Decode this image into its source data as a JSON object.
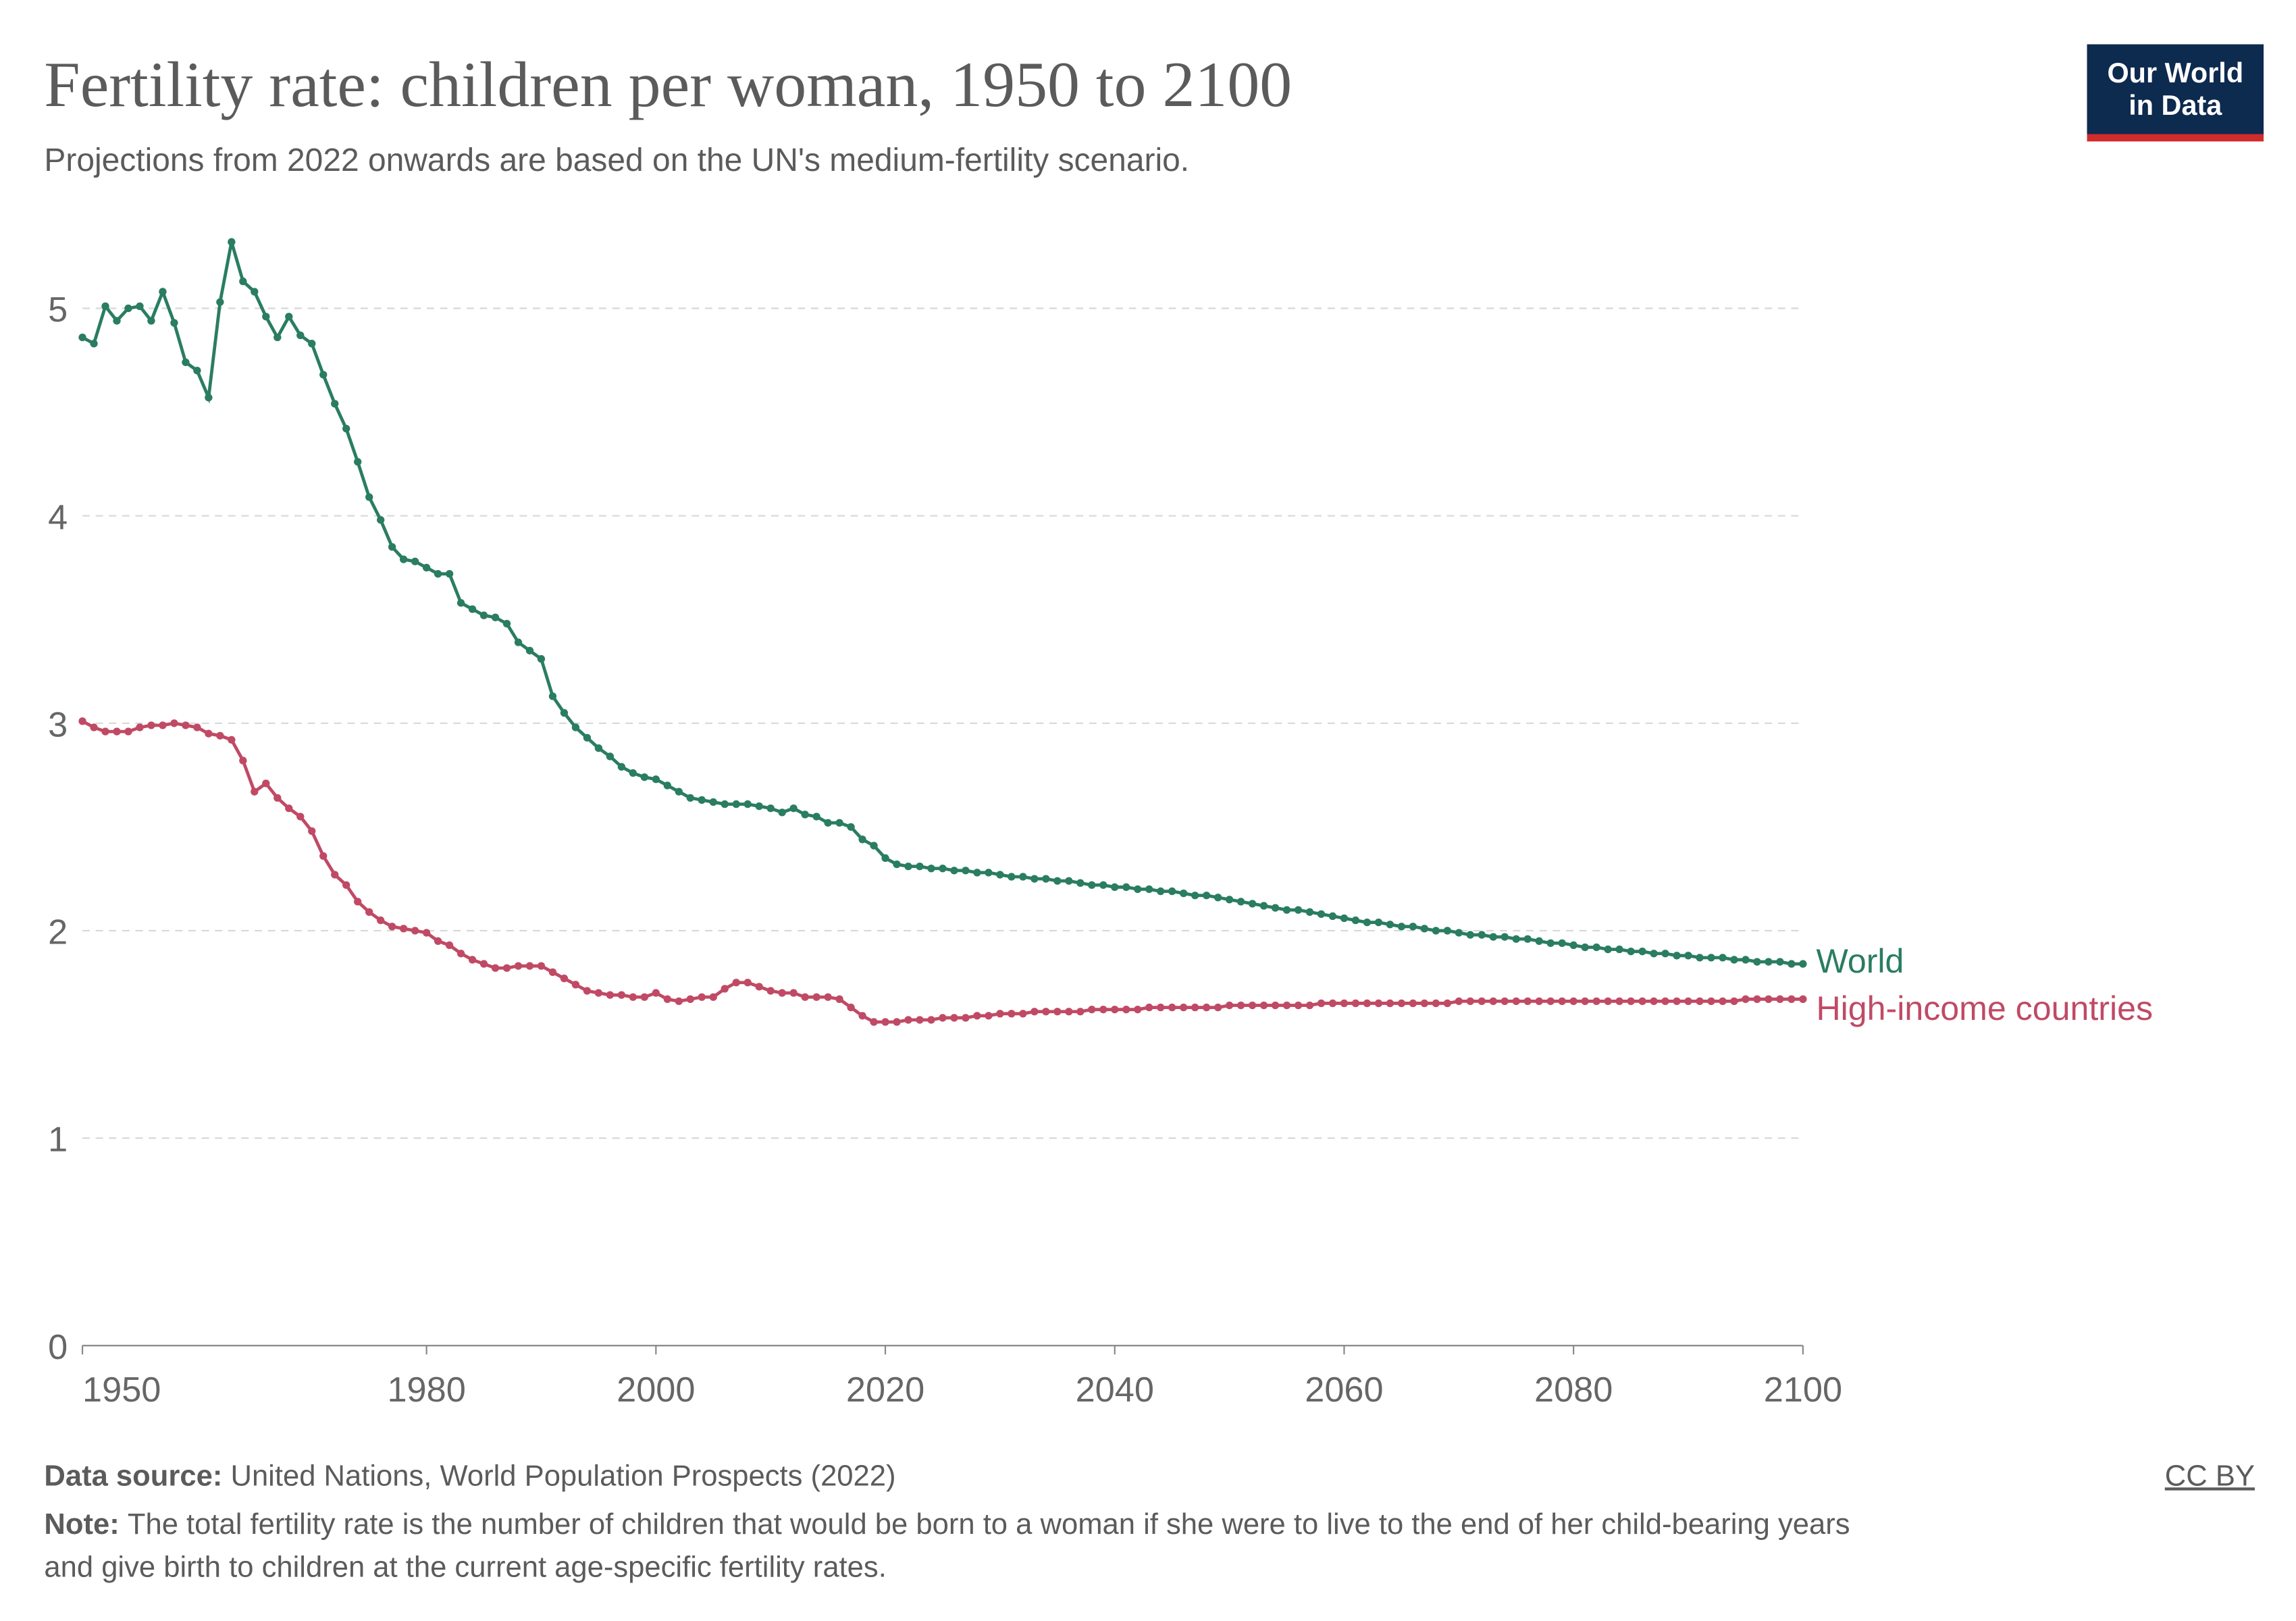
{
  "chart_data": {
    "type": "line",
    "title": "Fertility rate: children per woman, 1950 to 2100",
    "subtitle": "Projections from 2022 onwards are based on the UN's medium-fertility scenario.",
    "logo": [
      "Our World",
      "in Data"
    ],
    "source_label": "Data source:",
    "source": "United Nations, World Population Prospects (2022)",
    "license": "CC BY",
    "note_label": "Note:",
    "note_lines": [
      "The total fertility rate is the number of children that would be born to a woman if she were to live to the end of her child-bearing years",
      "and give birth to children at the current age-specific fertility rates."
    ],
    "x": [
      1950,
      1951,
      1952,
      1953,
      1954,
      1955,
      1956,
      1957,
      1958,
      1959,
      1960,
      1961,
      1962,
      1963,
      1964,
      1965,
      1966,
      1967,
      1968,
      1969,
      1970,
      1971,
      1972,
      1973,
      1974,
      1975,
      1976,
      1977,
      1978,
      1979,
      1980,
      1981,
      1982,
      1983,
      1984,
      1985,
      1986,
      1987,
      1988,
      1989,
      1990,
      1991,
      1992,
      1993,
      1994,
      1995,
      1996,
      1997,
      1998,
      1999,
      2000,
      2001,
      2002,
      2003,
      2004,
      2005,
      2006,
      2007,
      2008,
      2009,
      2010,
      2011,
      2012,
      2013,
      2014,
      2015,
      2016,
      2017,
      2018,
      2019,
      2020,
      2021,
      2022,
      2023,
      2024,
      2025,
      2026,
      2027,
      2028,
      2029,
      2030,
      2031,
      2032,
      2033,
      2034,
      2035,
      2036,
      2037,
      2038,
      2039,
      2040,
      2041,
      2042,
      2043,
      2044,
      2045,
      2046,
      2047,
      2048,
      2049,
      2050,
      2051,
      2052,
      2053,
      2054,
      2055,
      2056,
      2057,
      2058,
      2059,
      2060,
      2061,
      2062,
      2063,
      2064,
      2065,
      2066,
      2067,
      2068,
      2069,
      2070,
      2071,
      2072,
      2073,
      2074,
      2075,
      2076,
      2077,
      2078,
      2079,
      2080,
      2081,
      2082,
      2083,
      2084,
      2085,
      2086,
      2087,
      2088,
      2089,
      2090,
      2091,
      2092,
      2093,
      2094,
      2095,
      2096,
      2097,
      2098,
      2099,
      2100
    ],
    "series": [
      {
        "name": "World",
        "color": "#2a7d60",
        "values": [
          4.86,
          4.83,
          5.01,
          4.94,
          5.0,
          5.01,
          4.94,
          5.08,
          4.93,
          4.74,
          4.7,
          4.57,
          5.03,
          5.32,
          5.13,
          5.08,
          4.96,
          4.86,
          4.96,
          4.87,
          4.83,
          4.68,
          4.54,
          4.42,
          4.26,
          4.09,
          3.98,
          3.85,
          3.79,
          3.78,
          3.75,
          3.72,
          3.72,
          3.58,
          3.55,
          3.52,
          3.51,
          3.48,
          3.39,
          3.35,
          3.31,
          3.13,
          3.05,
          2.98,
          2.93,
          2.88,
          2.84,
          2.79,
          2.76,
          2.74,
          2.73,
          2.7,
          2.67,
          2.64,
          2.63,
          2.62,
          2.61,
          2.61,
          2.61,
          2.6,
          2.59,
          2.57,
          2.59,
          2.56,
          2.55,
          2.52,
          2.52,
          2.5,
          2.44,
          2.41,
          2.35,
          2.32,
          2.31,
          2.31,
          2.3,
          2.3,
          2.29,
          2.29,
          2.28,
          2.28,
          2.27,
          2.26,
          2.26,
          2.25,
          2.25,
          2.24,
          2.24,
          2.23,
          2.22,
          2.22,
          2.21,
          2.21,
          2.2,
          2.2,
          2.19,
          2.19,
          2.18,
          2.17,
          2.17,
          2.16,
          2.15,
          2.14,
          2.13,
          2.12,
          2.11,
          2.1,
          2.1,
          2.09,
          2.08,
          2.07,
          2.06,
          2.05,
          2.04,
          2.04,
          2.03,
          2.02,
          2.02,
          2.01,
          2.0,
          2.0,
          1.99,
          1.98,
          1.98,
          1.97,
          1.97,
          1.96,
          1.96,
          1.95,
          1.94,
          1.94,
          1.93,
          1.92,
          1.92,
          1.91,
          1.91,
          1.9,
          1.9,
          1.89,
          1.89,
          1.88,
          1.88,
          1.87,
          1.87,
          1.87,
          1.86,
          1.86,
          1.85,
          1.85,
          1.85,
          1.84,
          1.84
        ]
      },
      {
        "name": "High-income countries",
        "color": "#c04a65",
        "values": [
          3.01,
          2.98,
          2.96,
          2.96,
          2.96,
          2.98,
          2.99,
          2.99,
          3.0,
          2.99,
          2.98,
          2.95,
          2.94,
          2.92,
          2.82,
          2.67,
          2.71,
          2.64,
          2.59,
          2.55,
          2.48,
          2.36,
          2.27,
          2.22,
          2.14,
          2.09,
          2.05,
          2.02,
          2.01,
          2.0,
          1.99,
          1.95,
          1.93,
          1.89,
          1.86,
          1.84,
          1.82,
          1.82,
          1.83,
          1.83,
          1.83,
          1.8,
          1.77,
          1.74,
          1.71,
          1.7,
          1.69,
          1.69,
          1.68,
          1.68,
          1.7,
          1.67,
          1.66,
          1.67,
          1.68,
          1.68,
          1.72,
          1.75,
          1.75,
          1.73,
          1.71,
          1.7,
          1.7,
          1.68,
          1.68,
          1.68,
          1.67,
          1.63,
          1.59,
          1.56,
          1.56,
          1.56,
          1.57,
          1.57,
          1.57,
          1.58,
          1.58,
          1.58,
          1.59,
          1.59,
          1.6,
          1.6,
          1.6,
          1.61,
          1.61,
          1.61,
          1.61,
          1.61,
          1.62,
          1.62,
          1.62,
          1.62,
          1.62,
          1.63,
          1.63,
          1.63,
          1.63,
          1.63,
          1.63,
          1.63,
          1.64,
          1.64,
          1.64,
          1.64,
          1.64,
          1.64,
          1.64,
          1.64,
          1.65,
          1.65,
          1.65,
          1.65,
          1.65,
          1.65,
          1.65,
          1.65,
          1.65,
          1.65,
          1.65,
          1.65,
          1.66,
          1.66,
          1.66,
          1.66,
          1.66,
          1.66,
          1.66,
          1.66,
          1.66,
          1.66,
          1.66,
          1.66,
          1.66,
          1.66,
          1.66,
          1.66,
          1.66,
          1.66,
          1.66,
          1.66,
          1.66,
          1.66,
          1.66,
          1.66,
          1.66,
          1.67,
          1.67,
          1.67,
          1.67,
          1.67,
          1.67
        ]
      }
    ],
    "xlim": [
      1950,
      2100
    ],
    "ylim": [
      0,
      5.4
    ],
    "xticks": [
      1950,
      1980,
      2000,
      2020,
      2040,
      2060,
      2080,
      2100
    ],
    "yticks": [
      0,
      1,
      2,
      3,
      4,
      5
    ],
    "grid": true
  }
}
